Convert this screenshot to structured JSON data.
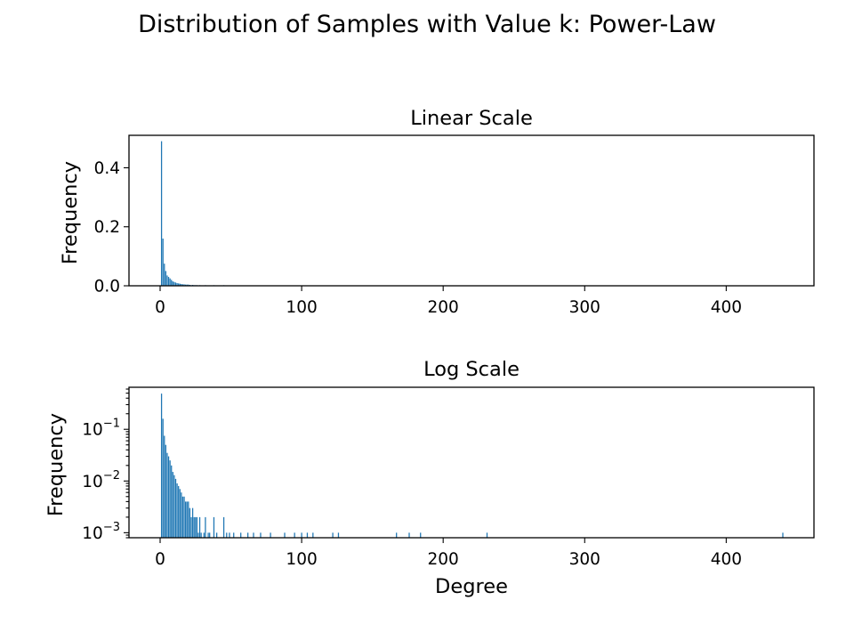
{
  "figure": {
    "suptitle": "Distribution of Samples with Value k: Power-Law"
  },
  "colors": {
    "bar": "#1f77b4"
  },
  "chart_data": [
    {
      "type": "bar",
      "title": "Linear Scale",
      "xlabel": "",
      "ylabel": "Frequency",
      "yscale": "linear",
      "xlim": [
        -22,
        462
      ],
      "ylim": [
        0,
        0.51
      ],
      "xticks": [
        0,
        100,
        200,
        300,
        400
      ],
      "yticks": [
        0.0,
        0.2,
        0.4
      ],
      "ytick_labels": [
        "0.0",
        "0.2",
        "0.4"
      ],
      "grid": false,
      "x": [
        1,
        2,
        3,
        4,
        5,
        6,
        7,
        8,
        9,
        10,
        11,
        12,
        13,
        14,
        15,
        16,
        17,
        18,
        19,
        20,
        21,
        22,
        23,
        24,
        25,
        26,
        27,
        28,
        29,
        31,
        32,
        34,
        35,
        38,
        40,
        45,
        47,
        49,
        52,
        57,
        62,
        66,
        71,
        78,
        88,
        95,
        100,
        104,
        108,
        122,
        126,
        167,
        176,
        184,
        231,
        440
      ],
      "values": [
        0.49,
        0.16,
        0.075,
        0.05,
        0.035,
        0.03,
        0.025,
        0.02,
        0.015,
        0.013,
        0.011,
        0.009,
        0.008,
        0.007,
        0.006,
        0.005,
        0.005,
        0.004,
        0.004,
        0.004,
        0.003,
        0.002,
        0.003,
        0.002,
        0.002,
        0.002,
        0.001,
        0.002,
        0.001,
        0.001,
        0.002,
        0.001,
        0.001,
        0.002,
        0.001,
        0.002,
        0.001,
        0.001,
        0.001,
        0.001,
        0.001,
        0.001,
        0.001,
        0.001,
        0.001,
        0.001,
        0.001,
        0.001,
        0.001,
        0.001,
        0.001,
        0.001,
        0.001,
        0.001,
        0.001,
        0.001
      ]
    },
    {
      "type": "bar",
      "title": "Log Scale",
      "xlabel": "Degree",
      "ylabel": "Frequency",
      "yscale": "log",
      "xlim": [
        -22,
        462
      ],
      "ylim": [
        0.0008,
        0.65
      ],
      "xticks": [
        0,
        100,
        200,
        300,
        400
      ],
      "yticks": [
        0.001,
        0.01,
        0.1
      ],
      "ytick_labels": [
        "10",
        "10",
        "10"
      ],
      "ytick_exponents": [
        "−3",
        "−2",
        "−1"
      ],
      "grid": false,
      "x": [
        1,
        2,
        3,
        4,
        5,
        6,
        7,
        8,
        9,
        10,
        11,
        12,
        13,
        14,
        15,
        16,
        17,
        18,
        19,
        20,
        21,
        22,
        23,
        24,
        25,
        26,
        27,
        28,
        29,
        31,
        32,
        34,
        35,
        38,
        40,
        45,
        47,
        49,
        52,
        57,
        62,
        66,
        71,
        78,
        88,
        95,
        100,
        104,
        108,
        122,
        126,
        167,
        176,
        184,
        231,
        440
      ],
      "values": [
        0.49,
        0.16,
        0.075,
        0.05,
        0.035,
        0.03,
        0.025,
        0.02,
        0.015,
        0.013,
        0.011,
        0.009,
        0.008,
        0.007,
        0.006,
        0.005,
        0.005,
        0.004,
        0.004,
        0.004,
        0.003,
        0.002,
        0.003,
        0.002,
        0.002,
        0.002,
        0.001,
        0.002,
        0.001,
        0.001,
        0.002,
        0.001,
        0.001,
        0.002,
        0.001,
        0.002,
        0.001,
        0.001,
        0.001,
        0.001,
        0.001,
        0.001,
        0.001,
        0.001,
        0.001,
        0.001,
        0.001,
        0.001,
        0.001,
        0.001,
        0.001,
        0.001,
        0.001,
        0.001,
        0.001,
        0.001
      ]
    }
  ]
}
